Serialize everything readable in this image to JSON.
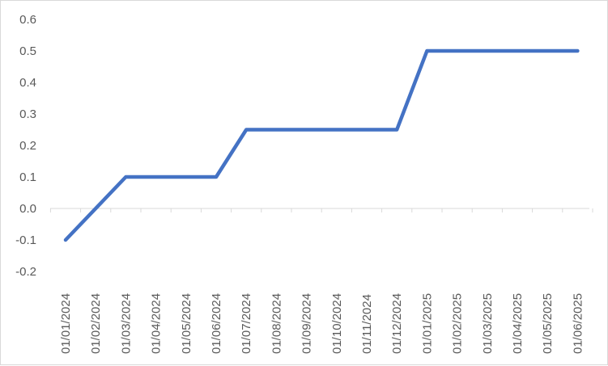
{
  "chart_data": {
    "type": "line",
    "title": "",
    "xlabel": "",
    "ylabel": "",
    "ylim": [
      -0.2,
      0.6
    ],
    "y_ticks": [
      "-0.2",
      "-0.1",
      "0.0",
      "0.1",
      "0.2",
      "0.3",
      "0.4",
      "0.5",
      "0.6"
    ],
    "x_tick_labels": [
      "01/01/2024",
      "01/02/2024",
      "01/03/2024",
      "01/04/2024",
      "01/05/2024",
      "01/06/2024",
      "01/07/2024",
      "01/08/2024",
      "01/09/2024",
      "01/10/2024",
      "01/11/2024",
      "01/12/2024",
      "01/01/2025",
      "01/02/2025",
      "01/03/2025",
      "01/04/2025",
      "01/05/2025",
      "01/06/2025"
    ],
    "gridlines": "none",
    "legend": "none",
    "series": [
      {
        "color": "#4472c4",
        "points": [
          {
            "x": "01/01/2024",
            "y": -0.1
          },
          {
            "x": "01/03/2024",
            "y": 0.1
          },
          {
            "x": "01/06/2024",
            "y": 0.1
          },
          {
            "x": "01/07/2024",
            "y": 0.25
          },
          {
            "x": "01/12/2024",
            "y": 0.25
          },
          {
            "x": "01/01/2025",
            "y": 0.5
          },
          {
            "x": "01/06/2025",
            "y": 0.5
          }
        ]
      }
    ]
  }
}
